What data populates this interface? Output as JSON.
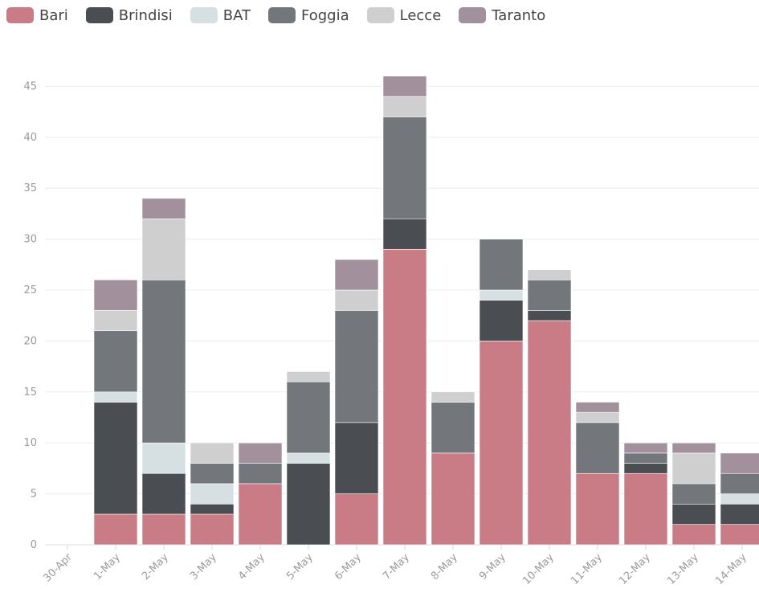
{
  "chart_data": {
    "type": "bar",
    "stacked": true,
    "categories": [
      "30-Apr",
      "1-May",
      "2-May",
      "3-May",
      "4-May",
      "5-May",
      "6-May",
      "7-May",
      "8-May",
      "9-May",
      "10-May",
      "11-May",
      "12-May",
      "13-May",
      "14-May"
    ],
    "series": [
      {
        "name": "Bari",
        "color": "#c97c86",
        "values": [
          0,
          3,
          3,
          3,
          6,
          0,
          5,
          29,
          9,
          20,
          22,
          7,
          7,
          2,
          2
        ]
      },
      {
        "name": "Brindisi",
        "color": "#4a4d52",
        "values": [
          0,
          11,
          4,
          1,
          0,
          8,
          7,
          3,
          0,
          4,
          1,
          0,
          1,
          2,
          2
        ]
      },
      {
        "name": "BAT",
        "color": "#d6e0e2",
        "values": [
          0,
          1,
          3,
          2,
          0,
          1,
          0,
          0,
          0,
          1,
          0,
          0,
          0,
          0,
          1
        ]
      },
      {
        "name": "Foggia",
        "color": "#73777b",
        "values": [
          0,
          6,
          16,
          2,
          2,
          7,
          11,
          10,
          5,
          5,
          3,
          5,
          1,
          2,
          2
        ]
      },
      {
        "name": "Lecce",
        "color": "#cfcfcf",
        "values": [
          0,
          2,
          6,
          2,
          0,
          1,
          2,
          2,
          1,
          0,
          1,
          1,
          0,
          3,
          0
        ]
      },
      {
        "name": "Taranto",
        "color": "#a3909d",
        "values": [
          0,
          3,
          2,
          0,
          2,
          0,
          3,
          2,
          0,
          0,
          0,
          1,
          1,
          1,
          2
        ]
      }
    ],
    "yticks": [
      0,
      5,
      10,
      15,
      20,
      25,
      30,
      35,
      40,
      45
    ],
    "ylim": [
      0,
      48
    ],
    "grid": true,
    "legend_position": "top-left"
  }
}
